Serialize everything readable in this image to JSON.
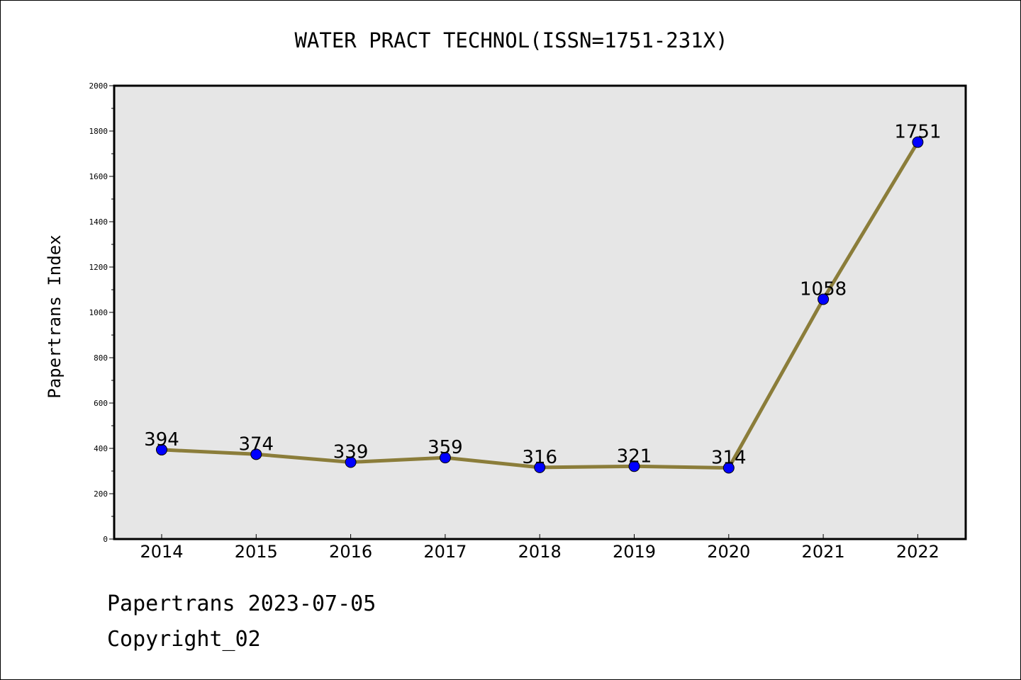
{
  "chart_data": {
    "type": "line",
    "title": "WATER PRACT TECHNOL(ISSN=1751-231X)",
    "xlabel": "",
    "ylabel": "Papertrans Index",
    "categories": [
      "2014",
      "2015",
      "2016",
      "2017",
      "2018",
      "2019",
      "2020",
      "2021",
      "2022"
    ],
    "values": [
      394,
      374,
      339,
      359,
      316,
      321,
      314,
      1058,
      1751
    ],
    "ylim": [
      0,
      2000
    ],
    "yticks": [
      0,
      200,
      400,
      600,
      800,
      1000,
      1200,
      1400,
      1600,
      1800,
      2000
    ],
    "grid": false,
    "legend": "none",
    "line_color": "#8b7d3a",
    "marker_color": "#0000ff",
    "plot_background": "#e6e6e6"
  },
  "footer": {
    "line1": "Papertrans 2023-07-05",
    "line2": "Copyright_02"
  }
}
